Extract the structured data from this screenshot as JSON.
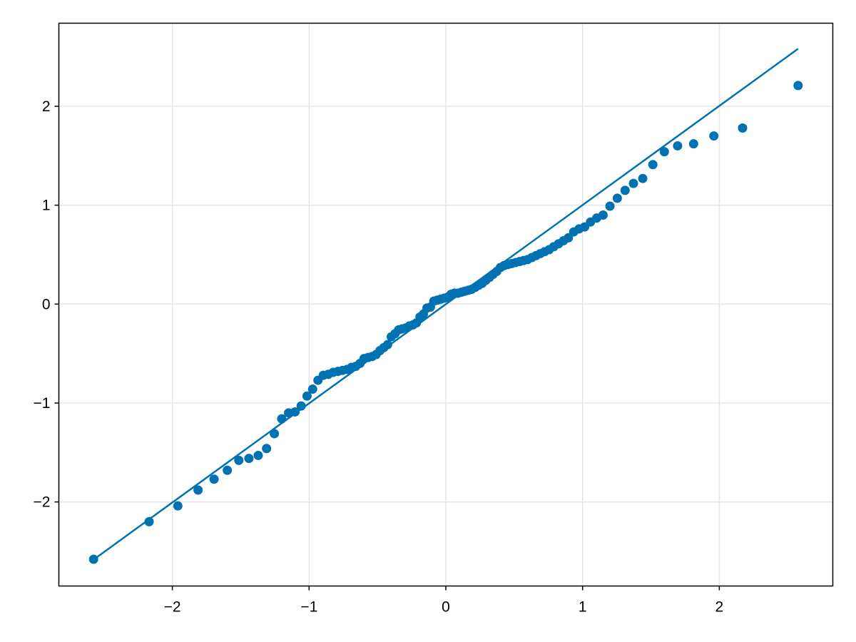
{
  "chart_data": {
    "type": "scatter",
    "title": "",
    "xlabel": "",
    "ylabel": "",
    "xlim": [
      -2.83,
      2.83
    ],
    "ylim": [
      -2.85,
      2.84
    ],
    "grid": true,
    "xticks": [
      -2,
      -1,
      0,
      1,
      2
    ],
    "yticks": [
      -2,
      -1,
      0,
      1,
      2
    ],
    "xtick_labels": [
      "−2",
      "−1",
      "0",
      "1",
      "2"
    ],
    "ytick_labels": [
      "−2",
      "−1",
      "0",
      "1",
      "2"
    ],
    "colors": {
      "series": "#0072b2",
      "grid": "#e5e5e5",
      "frame": "#000000"
    },
    "reference_line": {
      "x": [
        -2.576,
        2.576
      ],
      "y": [
        -2.583,
        2.581
      ]
    },
    "points": {
      "x": [
        -2.576,
        -2.17,
        -1.96,
        -1.812,
        -1.695,
        -1.598,
        -1.514,
        -1.44,
        -1.372,
        -1.311,
        -1.254,
        -1.2,
        -1.15,
        -1.103,
        -1.058,
        -1.015,
        -0.974,
        -0.935,
        -0.896,
        -0.86,
        -0.824,
        -0.789,
        -0.755,
        -0.722,
        -0.69,
        -0.659,
        -0.628,
        -0.598,
        -0.568,
        -0.539,
        -0.51,
        -0.482,
        -0.454,
        -0.426,
        -0.399,
        -0.372,
        -0.345,
        -0.319,
        -0.292,
        -0.266,
        -0.24,
        -0.215,
        -0.189,
        -0.164,
        -0.138,
        -0.113,
        -0.088,
        -0.063,
        -0.038,
        -0.013,
        0.013,
        0.038,
        0.063,
        0.088,
        0.113,
        0.138,
        0.164,
        0.189,
        0.215,
        0.24,
        0.266,
        0.292,
        0.319,
        0.345,
        0.372,
        0.399,
        0.426,
        0.454,
        0.482,
        0.51,
        0.539,
        0.568,
        0.598,
        0.628,
        0.659,
        0.69,
        0.722,
        0.755,
        0.789,
        0.824,
        0.86,
        0.896,
        0.935,
        0.974,
        1.015,
        1.058,
        1.103,
        1.15,
        1.2,
        1.254,
        1.311,
        1.372,
        1.44,
        1.514,
        1.598,
        1.695,
        1.812,
        1.96,
        2.17,
        2.576
      ],
      "y": [
        -2.58,
        -2.2,
        -2.04,
        -1.88,
        -1.77,
        -1.68,
        -1.58,
        -1.56,
        -1.53,
        -1.46,
        -1.31,
        -1.16,
        -1.1,
        -1.09,
        -1.03,
        -0.93,
        -0.86,
        -0.77,
        -0.72,
        -0.71,
        -0.69,
        -0.68,
        -0.67,
        -0.66,
        -0.64,
        -0.63,
        -0.6,
        -0.55,
        -0.54,
        -0.53,
        -0.51,
        -0.47,
        -0.44,
        -0.41,
        -0.33,
        -0.3,
        -0.26,
        -0.25,
        -0.24,
        -0.22,
        -0.21,
        -0.19,
        -0.13,
        -0.1,
        -0.04,
        -0.03,
        0.03,
        0.04,
        0.05,
        0.06,
        0.07,
        0.1,
        0.11,
        0.11,
        0.12,
        0.13,
        0.14,
        0.15,
        0.17,
        0.19,
        0.21,
        0.24,
        0.27,
        0.3,
        0.33,
        0.37,
        0.39,
        0.4,
        0.41,
        0.42,
        0.43,
        0.44,
        0.45,
        0.47,
        0.49,
        0.51,
        0.53,
        0.55,
        0.58,
        0.61,
        0.64,
        0.67,
        0.73,
        0.76,
        0.78,
        0.83,
        0.87,
        0.9,
        0.99,
        1.07,
        1.15,
        1.22,
        1.27,
        1.41,
        1.54,
        1.6,
        1.62,
        1.7,
        1.78,
        2.21
      ]
    }
  }
}
